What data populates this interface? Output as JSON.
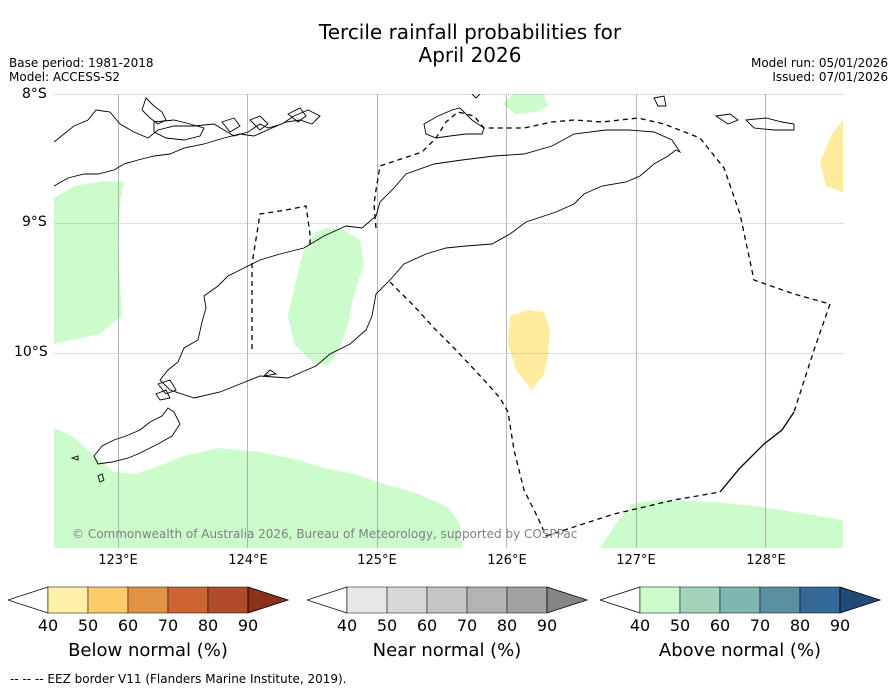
{
  "title_line1": "Tercile rainfall probabilities for",
  "title_line2": "April 2026",
  "base_period": "Base period: 1981-2018",
  "model": "Model: ACCESS-S2",
  "model_run": "Model run: 05/01/2026",
  "issued": "Issued: 07/01/2026",
  "copyright": "© Commonwealth of Australia 2026, Bureau of Meteorology, supported by COSPPac",
  "lat_labels": [
    "8°S",
    "9°S",
    "10°S"
  ],
  "lon_labels": [
    "123°E",
    "124°E",
    "125°E",
    "126°E",
    "127°E",
    "128°E"
  ],
  "colorbars": [
    {
      "title": "Below normal (%)",
      "ticks": [
        "40",
        "50",
        "60",
        "70",
        "80",
        "90"
      ],
      "colors": [
        "#fff0a8",
        "#fdcb6a",
        "#e09343",
        "#cd6433",
        "#b04a28",
        "#8b321d"
      ]
    },
    {
      "title": "Near normal (%)",
      "ticks": [
        "40",
        "50",
        "60",
        "70",
        "80",
        "90"
      ],
      "colors": [
        "#e8e8e8",
        "#d8d8d8",
        "#c6c6c6",
        "#b3b3b3",
        "#a1a1a1",
        "#858585"
      ]
    },
    {
      "title": "Above normal (%)",
      "ticks": [
        "40",
        "50",
        "60",
        "70",
        "80",
        "90"
      ],
      "colors": [
        "#ccfccc",
        "#a2d3bb",
        "#7eb6b0",
        "#5a90a0",
        "#336897",
        "#1f4a7a"
      ]
    }
  ],
  "eez_note": "--  --  -- EEZ border V11 (Flanders Marine Institute, 2019).",
  "colors": {
    "above_40": "#ccfccc",
    "below_40": "#ffeb9e",
    "grid": "#888888"
  }
}
